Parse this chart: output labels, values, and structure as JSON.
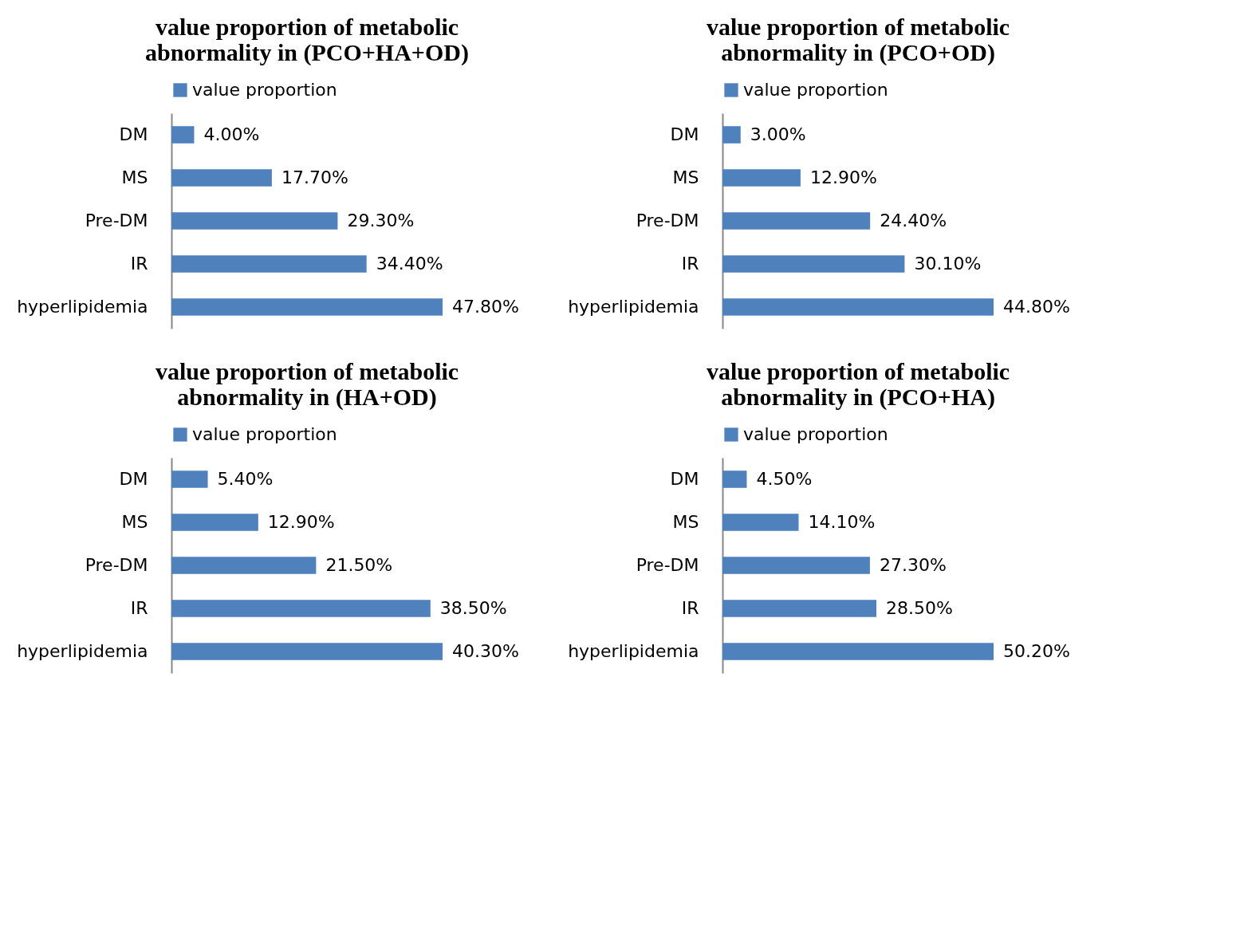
{
  "chart_data": [
    {
      "type": "bar",
      "orientation": "horizontal",
      "title": "value proportion of metabolic abnormality in (PCO+HA+OD)",
      "categories": [
        "DM",
        "MS",
        "Pre-DM",
        "IR",
        "hyperlipidemia"
      ],
      "legend": "top",
      "series": [
        {
          "name": "value proportion",
          "color": "#4f81bd",
          "values": [
            4.0,
            17.7,
            29.3,
            34.4,
            47.8
          ],
          "value_labels": [
            "4.00%",
            "17.70%",
            "29.30%",
            "34.40%",
            "47.80%"
          ]
        }
      ]
    },
    {
      "type": "bar",
      "orientation": "horizontal",
      "title": "value proportion of metabolic abnormality in (PCO+OD)",
      "categories": [
        "DM",
        "MS",
        "Pre-DM",
        "IR",
        "hyperlipidemia"
      ],
      "legend": "top",
      "series": [
        {
          "name": "value proportion",
          "color": "#4f81bd",
          "values": [
            3.0,
            12.9,
            24.4,
            30.1,
            44.8
          ],
          "value_labels": [
            "3.00%",
            "12.90%",
            "24.40%",
            "30.10%",
            "44.80%"
          ]
        }
      ]
    },
    {
      "type": "bar",
      "orientation": "horizontal",
      "title": "value proportion of metabolic abnormality in (HA+OD)",
      "categories": [
        "DM",
        "MS",
        "Pre-DM",
        "IR",
        "hyperlipidemia"
      ],
      "legend": "top",
      "series": [
        {
          "name": "value proportion",
          "color": "#4f81bd",
          "values": [
            5.4,
            12.9,
            21.5,
            38.5,
            40.3
          ],
          "value_labels": [
            "5.40%",
            "12.90%",
            "21.50%",
            "38.50%",
            "40.30%"
          ]
        }
      ]
    },
    {
      "type": "bar",
      "orientation": "horizontal",
      "title": "value proportion of metabolic abnormality in (PCO+HA)",
      "categories": [
        "DM",
        "MS",
        "Pre-DM",
        "IR",
        "hyperlipidemia"
      ],
      "legend": "top",
      "series": [
        {
          "name": "value proportion",
          "color": "#4f81bd",
          "values": [
            4.5,
            14.1,
            27.3,
            28.5,
            50.2
          ],
          "value_labels": [
            "4.50%",
            "14.10%",
            "27.30%",
            "28.50%",
            "50.20%"
          ]
        }
      ]
    }
  ]
}
